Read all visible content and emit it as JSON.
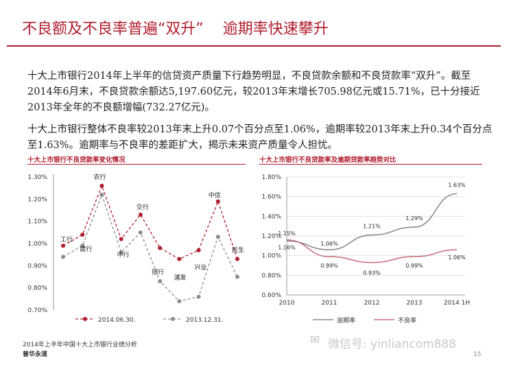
{
  "slide": {
    "title": "不良额及不良率普遍“双升”    逾期率快速攀升",
    "para1": "十大上市银行2014年上半年的信贷资产质量下行趋势明显，不良贷款余额和不良贷款率“双升”。截至2014年6月末，不良贷款余额达5,197.60亿元，较2013年末增长705.98亿元或15.71%，已十分接近2013年全年的不良额增幅(732.27亿元)。",
    "para2": "十大上市银行整体不良率较2013年末上升0.07个百分点至1.06%，逾期率较2013年末上升0.34个百分点至1.63%。逾期率与不良率的差距扩大，揭示未来资产质量令人担忧。",
    "footer_line1": "2014年上半年中国十大上市银行业绩分析",
    "footer_line2": "普华永道",
    "page_number": "15",
    "watermark": "微信号: yinliancom888",
    "colors": {
      "accent": "#b01c2e",
      "grey_series": "#8c8c8c",
      "npl_line": "#c8727c"
    }
  },
  "chart_data": [
    {
      "type": "line",
      "title": "十大上市银行不良贷款率变化情况",
      "categories": [
        "工行",
        "建行",
        "农行",
        "中行",
        "交行",
        "招行",
        "浦发",
        "兴业",
        "中信",
        "民生"
      ],
      "series": [
        {
          "name": "2014.06.30.",
          "values": [
            0.99,
            1.04,
            1.26,
            1.02,
            1.13,
            0.98,
            0.93,
            0.97,
            1.19,
            0.93
          ]
        },
        {
          "name": "2013.12.31.",
          "values": [
            0.94,
            0.99,
            1.22,
            0.96,
            1.05,
            0.83,
            0.74,
            0.76,
            1.03,
            0.85
          ]
        }
      ],
      "ylim": [
        0.7,
        1.3
      ],
      "yticks": [
        "1.30%",
        "1.20%",
        "1.10%",
        "1.00%",
        "0.90%",
        "0.80%",
        "0.70%"
      ],
      "legend_position": "bottom"
    },
    {
      "type": "line",
      "title": "十大上市银行不良贷款率及逾期贷款率趋势对比",
      "x": [
        "2010",
        "2011",
        "2012",
        "2013",
        "2014 1H"
      ],
      "series": [
        {
          "name": "逾期率",
          "values": [
            1.15,
            1.06,
            1.21,
            1.29,
            1.63
          ],
          "labels": [
            "1.15%",
            "1.06%",
            "1.21%",
            "1.29%",
            "1.63%"
          ]
        },
        {
          "name": "不良率",
          "values": [
            1.16,
            0.99,
            0.93,
            0.99,
            1.06
          ],
          "labels": [
            "1.16%",
            "0.99%",
            "0.93%",
            "0.99%",
            "1.06%"
          ]
        }
      ],
      "ylim": [
        0.6,
        1.8
      ],
      "yticks": [
        "1.80%",
        "1.60%",
        "1.40%",
        "1.20%",
        "1.00%",
        "0.80%",
        "0.60%"
      ],
      "legend_position": "bottom"
    }
  ]
}
